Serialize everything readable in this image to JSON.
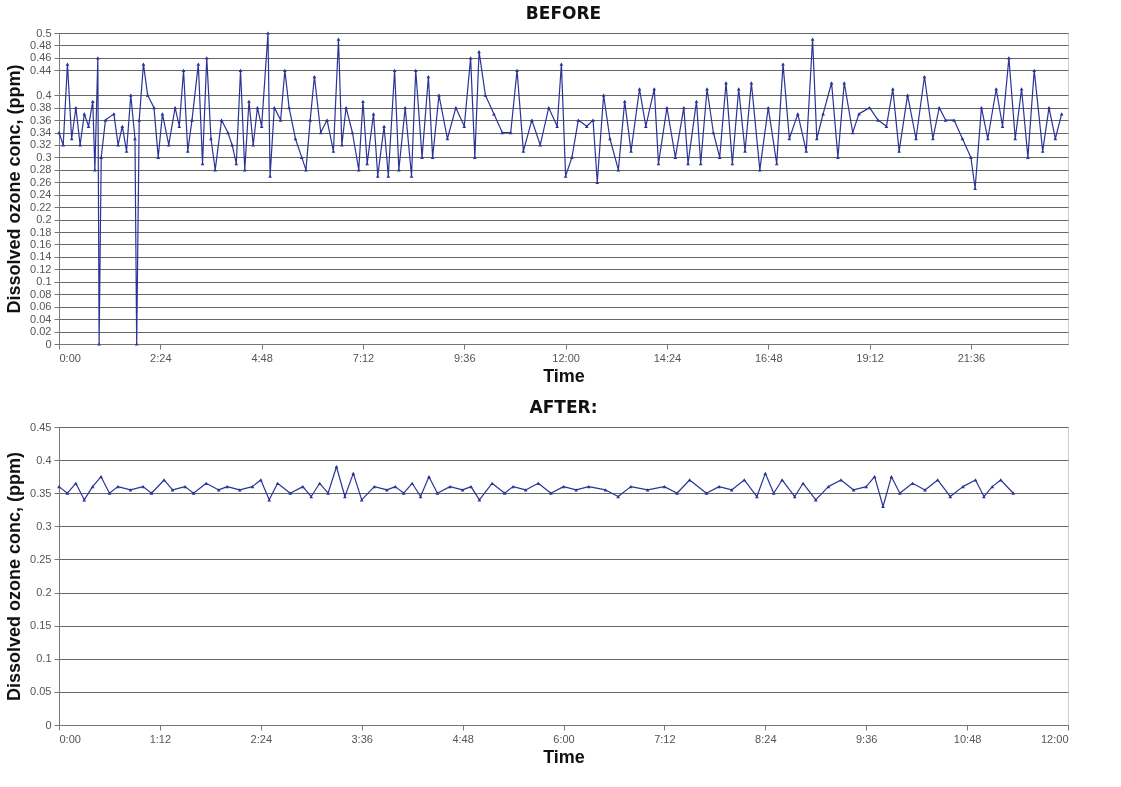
{
  "chart_data": [
    {
      "type": "line",
      "title": "BEFORE",
      "xlabel": "Time",
      "ylabel": "Dissolved ozone conc, (ppm)",
      "grid": "y",
      "marker": "triangle",
      "xlim": [
        0,
        23.9
      ],
      "xticks": [
        {
          "value": 0,
          "label": "0:00"
        },
        {
          "value": 2.4,
          "label": "2:24"
        },
        {
          "value": 4.8,
          "label": "4:48"
        },
        {
          "value": 7.2,
          "label": "7:12"
        },
        {
          "value": 9.6,
          "label": "9:36"
        },
        {
          "value": 12,
          "label": "12:00"
        },
        {
          "value": 14.4,
          "label": "14:24"
        },
        {
          "value": 16.8,
          "label": "16:48"
        },
        {
          "value": 19.2,
          "label": "19:12"
        },
        {
          "value": 21.6,
          "label": "21:36"
        }
      ],
      "ylim": [
        0,
        0.5
      ],
      "yticks": [
        0,
        0.02,
        0.04,
        0.06,
        0.08,
        0.1,
        0.12,
        0.14,
        0.16,
        0.18,
        0.2,
        0.22,
        0.24,
        0.26,
        0.28,
        0.3,
        0.32,
        0.34,
        0.36,
        0.38,
        0.4,
        0.44,
        0.46,
        0.48,
        0.5
      ],
      "x": [
        0.0,
        0.1,
        0.2,
        0.3,
        0.4,
        0.5,
        0.6,
        0.7,
        0.8,
        0.85,
        0.92,
        0.95,
        1.0,
        1.1,
        1.3,
        1.4,
        1.5,
        1.6,
        1.7,
        1.8,
        1.84,
        1.9,
        2.0,
        2.1,
        2.25,
        2.35,
        2.45,
        2.6,
        2.75,
        2.85,
        2.95,
        3.05,
        3.15,
        3.3,
        3.4,
        3.5,
        3.6,
        3.7,
        3.85,
        4.0,
        4.1,
        4.2,
        4.3,
        4.4,
        4.5,
        4.6,
        4.7,
        4.8,
        4.95,
        5.0,
        5.1,
        5.25,
        5.35,
        5.45,
        5.6,
        5.75,
        5.85,
        5.95,
        6.05,
        6.2,
        6.35,
        6.5,
        6.62,
        6.7,
        6.8,
        6.95,
        7.1,
        7.2,
        7.3,
        7.45,
        7.55,
        7.7,
        7.8,
        7.95,
        8.05,
        8.2,
        8.35,
        8.45,
        8.6,
        8.75,
        8.85,
        9.0,
        9.2,
        9.4,
        9.6,
        9.75,
        9.85,
        9.95,
        10.1,
        10.3,
        10.5,
        10.7,
        10.85,
        11.0,
        11.2,
        11.4,
        11.6,
        11.8,
        11.9,
        12.0,
        12.15,
        12.3,
        12.5,
        12.65,
        12.75,
        12.9,
        13.05,
        13.25,
        13.4,
        13.55,
        13.75,
        13.9,
        14.1,
        14.2,
        14.4,
        14.6,
        14.8,
        14.9,
        15.1,
        15.2,
        15.35,
        15.5,
        15.65,
        15.8,
        15.95,
        16.1,
        16.25,
        16.4,
        16.6,
        16.8,
        17.0,
        17.15,
        17.3,
        17.5,
        17.7,
        17.85,
        17.95,
        18.1,
        18.3,
        18.45,
        18.6,
        18.8,
        18.95,
        19.2,
        19.4,
        19.6,
        19.75,
        19.9,
        20.1,
        20.3,
        20.5,
        20.7,
        20.85,
        21.0,
        21.2,
        21.4,
        21.6,
        21.7,
        21.85,
        22.0,
        22.2,
        22.35,
        22.5,
        22.65,
        22.8,
        22.95,
        23.1,
        23.3,
        23.45,
        23.6,
        23.75
      ],
      "series": [
        {
          "color": "#2b3597",
          "values": [
            0.34,
            0.32,
            0.45,
            0.33,
            0.38,
            0.32,
            0.37,
            0.35,
            0.39,
            0.28,
            0.46,
            0,
            0.3,
            0.36,
            0.37,
            0.32,
            0.35,
            0.31,
            0.4,
            0.33,
            0,
            0.36,
            0.45,
            0.4,
            0.38,
            0.3,
            0.37,
            0.32,
            0.38,
            0.35,
            0.44,
            0.31,
            0.36,
            0.45,
            0.29,
            0.46,
            0.33,
            0.28,
            0.36,
            0.34,
            0.32,
            0.29,
            0.44,
            0.28,
            0.39,
            0.32,
            0.38,
            0.35,
            0.5,
            0.27,
            0.38,
            0.36,
            0.44,
            0.38,
            0.33,
            0.3,
            0.28,
            0.36,
            0.43,
            0.34,
            0.36,
            0.31,
            0.49,
            0.32,
            0.38,
            0.34,
            0.28,
            0.39,
            0.29,
            0.37,
            0.27,
            0.35,
            0.27,
            0.44,
            0.28,
            0.38,
            0.27,
            0.44,
            0.3,
            0.43,
            0.3,
            0.4,
            0.33,
            0.38,
            0.35,
            0.46,
            0.3,
            0.47,
            0.4,
            0.37,
            0.34,
            0.34,
            0.44,
            0.31,
            0.36,
            0.32,
            0.38,
            0.35,
            0.45,
            0.27,
            0.3,
            0.36,
            0.35,
            0.36,
            0.26,
            0.4,
            0.33,
            0.28,
            0.39,
            0.31,
            0.41,
            0.35,
            0.41,
            0.29,
            0.38,
            0.3,
            0.38,
            0.29,
            0.39,
            0.29,
            0.41,
            0.34,
            0.3,
            0.42,
            0.29,
            0.41,
            0.31,
            0.42,
            0.28,
            0.38,
            0.29,
            0.45,
            0.33,
            0.37,
            0.31,
            0.49,
            0.33,
            0.37,
            0.42,
            0.3,
            0.42,
            0.34,
            0.37,
            0.38,
            0.36,
            0.35,
            0.41,
            0.31,
            0.4,
            0.33,
            0.43,
            0.33,
            0.38,
            0.36,
            0.36,
            0.33,
            0.3,
            0.25,
            0.38,
            0.33,
            0.41,
            0.35,
            0.46,
            0.33,
            0.41,
            0.3,
            0.44,
            0.31,
            0.38,
            0.33,
            0.37
          ]
        }
      ]
    },
    {
      "type": "line",
      "title": "AFTER:",
      "xlabel": "Time",
      "ylabel": "Dissolved ozone conc, (ppm)",
      "grid": "y",
      "marker": "triangle",
      "xlim": [
        0,
        12
      ],
      "xticks": [
        {
          "value": 0,
          "label": "0:00"
        },
        {
          "value": 1.2,
          "label": "1:12"
        },
        {
          "value": 2.4,
          "label": "2:24"
        },
        {
          "value": 3.6,
          "label": "3:36"
        },
        {
          "value": 4.8,
          "label": "4:48"
        },
        {
          "value": 6,
          "label": "6:00"
        },
        {
          "value": 7.2,
          "label": "7:12"
        },
        {
          "value": 8.4,
          "label": "8:24"
        },
        {
          "value": 9.6,
          "label": "9:36"
        },
        {
          "value": 10.8,
          "label": "10:48"
        },
        {
          "value": 12,
          "label": "12:00"
        }
      ],
      "ylim": [
        0,
        0.45
      ],
      "yticks": [
        0,
        0.05,
        0.1,
        0.15,
        0.2,
        0.25,
        0.3,
        0.35,
        0.4,
        0.45
      ],
      "x": [
        0.0,
        0.1,
        0.2,
        0.3,
        0.4,
        0.5,
        0.6,
        0.7,
        0.85,
        1.0,
        1.1,
        1.25,
        1.35,
        1.5,
        1.6,
        1.75,
        1.9,
        2.0,
        2.15,
        2.3,
        2.4,
        2.5,
        2.6,
        2.75,
        2.9,
        3.0,
        3.1,
        3.2,
        3.3,
        3.4,
        3.5,
        3.6,
        3.75,
        3.9,
        4.0,
        4.1,
        4.2,
        4.3,
        4.4,
        4.5,
        4.65,
        4.8,
        4.9,
        5.0,
        5.15,
        5.3,
        5.4,
        5.55,
        5.7,
        5.85,
        6.0,
        6.15,
        6.3,
        6.5,
        6.65,
        6.8,
        7.0,
        7.2,
        7.35,
        7.5,
        7.7,
        7.85,
        8.0,
        8.15,
        8.3,
        8.4,
        8.5,
        8.6,
        8.75,
        8.85,
        9.0,
        9.15,
        9.3,
        9.45,
        9.6,
        9.7,
        9.8,
        9.9,
        10.0,
        10.15,
        10.3,
        10.45,
        10.6,
        10.75,
        10.9,
        11.0,
        11.1,
        11.2,
        11.35
      ],
      "series": [
        {
          "color": "#2b3597",
          "values": [
            0.36,
            0.35,
            0.365,
            0.34,
            0.36,
            0.375,
            0.35,
            0.36,
            0.355,
            0.36,
            0.35,
            0.37,
            0.355,
            0.36,
            0.35,
            0.365,
            0.355,
            0.36,
            0.355,
            0.36,
            0.37,
            0.34,
            0.365,
            0.35,
            0.36,
            0.345,
            0.365,
            0.35,
            0.39,
            0.345,
            0.38,
            0.34,
            0.36,
            0.355,
            0.36,
            0.35,
            0.365,
            0.345,
            0.375,
            0.35,
            0.36,
            0.355,
            0.36,
            0.34,
            0.365,
            0.35,
            0.36,
            0.355,
            0.365,
            0.35,
            0.36,
            0.355,
            0.36,
            0.355,
            0.345,
            0.36,
            0.355,
            0.36,
            0.35,
            0.37,
            0.35,
            0.36,
            0.355,
            0.37,
            0.345,
            0.38,
            0.35,
            0.37,
            0.345,
            0.365,
            0.34,
            0.36,
            0.37,
            0.355,
            0.36,
            0.375,
            0.33,
            0.375,
            0.35,
            0.365,
            0.355,
            0.37,
            0.345,
            0.36,
            0.37,
            0.345,
            0.36,
            0.37,
            0.35
          ]
        }
      ]
    }
  ]
}
